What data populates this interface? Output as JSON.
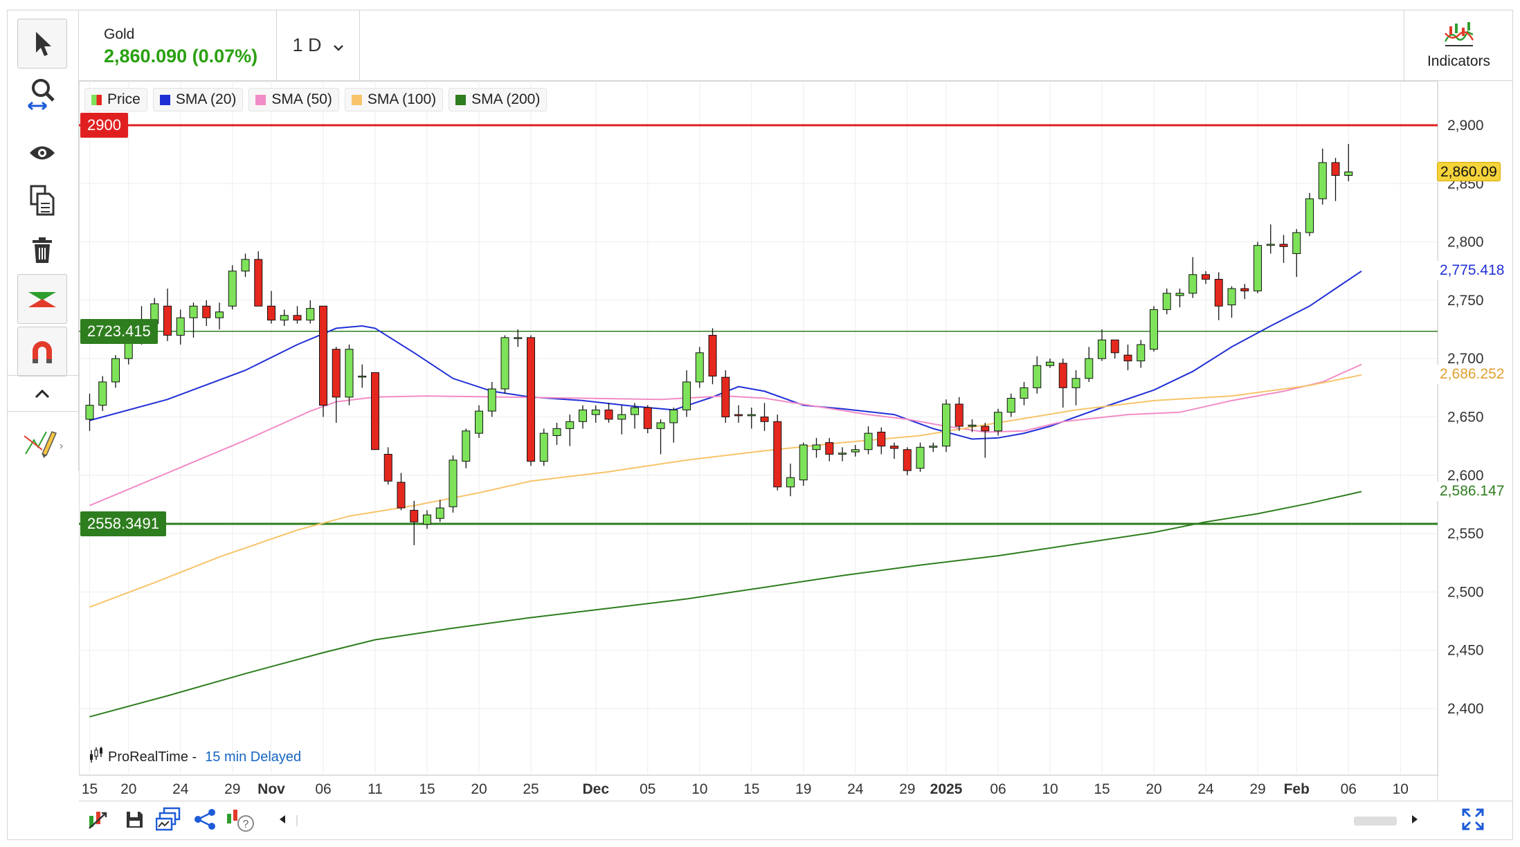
{
  "instrument": {
    "name": "Gold",
    "price": "2,860.090 (0.07%)",
    "price_color": "#2aa012"
  },
  "timeframe": {
    "label": "1 D"
  },
  "indicators_button": {
    "label": "Indicators"
  },
  "toolbar_left": {
    "tools": [
      "pointer-icon",
      "zoom-pan-icon",
      "eye-icon",
      "copy-icon",
      "trash-icon",
      "trend-tool-icon",
      "magnet-icon",
      "collapse-up-icon",
      "drawing-pencil-icon"
    ]
  },
  "toolbar_bottom": {
    "icons": [
      "change-instrument-icon",
      "save-icon",
      "layouts-icon",
      "share-icon",
      "alert-help-icon",
      "scroll-left-icon",
      "scroll-right-icon",
      "fullscreen-icon"
    ]
  },
  "provider": {
    "name": "ProRealTime -",
    "delay": "15 min Delayed"
  },
  "legend": [
    {
      "label": "Price",
      "color": "#2aa012"
    },
    {
      "label": "SMA (20)",
      "color": "#1f2fd6"
    },
    {
      "label": "SMA (50)",
      "color": "#f28cc6"
    },
    {
      "label": "SMA (100)",
      "color": "#f7c46a"
    },
    {
      "label": "SMA (200)",
      "color": "#2e7d1e"
    }
  ],
  "levels": [
    {
      "label": "2900",
      "value": 2900,
      "color": "#e02020"
    },
    {
      "label": "2723.415",
      "value": 2723.415,
      "color": "#2e7d1e"
    },
    {
      "label": "2558.3491",
      "value": 2558.3491,
      "color": "#2e7d1e"
    }
  ],
  "price_tags": [
    {
      "label": "2,860.09",
      "value": 2860.09,
      "bg": "#f5d33a",
      "fg": "#111111",
      "border": "#d6a800"
    },
    {
      "label": "2,775.418",
      "value": 2775.418,
      "bg": "#ffffff",
      "fg": "#1f2fd6",
      "border": ""
    },
    {
      "label": "2,686.252",
      "value": 2686.252,
      "bg": "#ffffff",
      "fg": "#e0a030",
      "border": ""
    },
    {
      "label": "2,586.147",
      "value": 2586.147,
      "bg": "#ffffff",
      "fg": "#2e7d1e",
      "border": ""
    }
  ],
  "chart_data": {
    "type": "candlestick",
    "title": "Gold",
    "y_ticks": [
      2400,
      2450,
      2500,
      2550,
      2600,
      2650,
      2700,
      2750,
      2800,
      2850,
      2900
    ],
    "y_tick_labels": [
      "2,400",
      "2,450",
      "2,500",
      "2,550",
      "2,600",
      "2,650",
      "2,700",
      "2,750",
      "2,800",
      "2,850",
      "2,900"
    ],
    "ylim": [
      2350,
      2920
    ],
    "x_ticks": [
      {
        "label": "15",
        "index": 0,
        "bold": false
      },
      {
        "label": "20",
        "index": 3,
        "bold": false
      },
      {
        "label": "24",
        "index": 7,
        "bold": false
      },
      {
        "label": "29",
        "index": 11,
        "bold": false
      },
      {
        "label": "Nov",
        "index": 14,
        "bold": true
      },
      {
        "label": "06",
        "index": 18,
        "bold": false
      },
      {
        "label": "11",
        "index": 22,
        "bold": false
      },
      {
        "label": "15",
        "index": 26,
        "bold": false
      },
      {
        "label": "20",
        "index": 30,
        "bold": false
      },
      {
        "label": "25",
        "index": 34,
        "bold": false
      },
      {
        "label": "Dec",
        "index": 39,
        "bold": true
      },
      {
        "label": "05",
        "index": 43,
        "bold": false
      },
      {
        "label": "10",
        "index": 47,
        "bold": false
      },
      {
        "label": "15",
        "index": 51,
        "bold": false
      },
      {
        "label": "19",
        "index": 55,
        "bold": false
      },
      {
        "label": "24",
        "index": 59,
        "bold": false
      },
      {
        "label": "29",
        "index": 63,
        "bold": false
      },
      {
        "label": "2025",
        "index": 66,
        "bold": true
      },
      {
        "label": "06",
        "index": 70,
        "bold": false
      },
      {
        "label": "10",
        "index": 74,
        "bold": false
      },
      {
        "label": "15",
        "index": 78,
        "bold": false
      },
      {
        "label": "20",
        "index": 82,
        "bold": false
      },
      {
        "label": "24",
        "index": 86,
        "bold": false
      },
      {
        "label": "29",
        "index": 90,
        "bold": false
      },
      {
        "label": "Feb",
        "index": 93,
        "bold": true
      },
      {
        "label": "06",
        "index": 97,
        "bold": false
      },
      {
        "label": "10",
        "index": 101,
        "bold": false
      }
    ],
    "candles": [
      [
        2648,
        2670,
        2638,
        2660
      ],
      [
        2660,
        2685,
        2655,
        2680
      ],
      [
        2680,
        2703,
        2675,
        2700
      ],
      [
        2700,
        2725,
        2695,
        2722
      ],
      [
        2722,
        2745,
        2712,
        2730
      ],
      [
        2730,
        2752,
        2725,
        2747
      ],
      [
        2745,
        2760,
        2715,
        2720
      ],
      [
        2720,
        2742,
        2712,
        2735
      ],
      [
        2735,
        2748,
        2718,
        2745
      ],
      [
        2745,
        2750,
        2728,
        2735
      ],
      [
        2735,
        2748,
        2725,
        2740
      ],
      [
        2745,
        2780,
        2742,
        2775
      ],
      [
        2775,
        2790,
        2770,
        2785
      ],
      [
        2785,
        2792,
        2745,
        2745
      ],
      [
        2745,
        2758,
        2730,
        2733
      ],
      [
        2733,
        2742,
        2728,
        2737
      ],
      [
        2737,
        2745,
        2730,
        2733
      ],
      [
        2733,
        2750,
        2730,
        2743
      ],
      [
        2745,
        2745,
        2650,
        2660
      ],
      [
        2708,
        2710,
        2645,
        2667
      ],
      [
        2667,
        2712,
        2660,
        2708
      ],
      [
        2685,
        2695,
        2675,
        2685
      ],
      [
        2688,
        2688,
        2622,
        2622
      ],
      [
        2618,
        2624,
        2592,
        2595
      ],
      [
        2594,
        2602,
        2570,
        2572
      ],
      [
        2570,
        2578,
        2540,
        2560
      ],
      [
        2558,
        2570,
        2554,
        2566
      ],
      [
        2563,
        2579,
        2560,
        2572
      ],
      [
        2573,
        2617,
        2568,
        2613
      ],
      [
        2612,
        2640,
        2606,
        2638
      ],
      [
        2636,
        2660,
        2632,
        2655
      ],
      [
        2655,
        2680,
        2650,
        2674
      ],
      [
        2674,
        2720,
        2670,
        2718
      ],
      [
        2718,
        2725,
        2710,
        2718
      ],
      [
        2718,
        2720,
        2608,
        2612
      ],
      [
        2612,
        2640,
        2608,
        2636
      ],
      [
        2634,
        2645,
        2626,
        2640
      ],
      [
        2640,
        2652,
        2625,
        2646
      ],
      [
        2646,
        2660,
        2640,
        2656
      ],
      [
        2652,
        2660,
        2645,
        2656
      ],
      [
        2656,
        2662,
        2645,
        2648
      ],
      [
        2648,
        2660,
        2635,
        2652
      ],
      [
        2652,
        2662,
        2640,
        2658
      ],
      [
        2658,
        2660,
        2636,
        2640
      ],
      [
        2640,
        2648,
        2618,
        2645
      ],
      [
        2645,
        2658,
        2628,
        2656
      ],
      [
        2656,
        2690,
        2650,
        2680
      ],
      [
        2680,
        2710,
        2675,
        2705
      ],
      [
        2720,
        2726,
        2678,
        2685
      ],
      [
        2684,
        2690,
        2645,
        2650
      ],
      [
        2652,
        2660,
        2645,
        2651
      ],
      [
        2651,
        2658,
        2640,
        2652
      ],
      [
        2650,
        2662,
        2638,
        2646
      ],
      [
        2646,
        2652,
        2587,
        2590
      ],
      [
        2590,
        2610,
        2582,
        2598
      ],
      [
        2596,
        2628,
        2591,
        2626
      ],
      [
        2622,
        2632,
        2615,
        2626
      ],
      [
        2628,
        2632,
        2612,
        2618
      ],
      [
        2618,
        2624,
        2612,
        2619
      ],
      [
        2620,
        2626,
        2616,
        2622
      ],
      [
        2622,
        2642,
        2618,
        2636
      ],
      [
        2637,
        2641,
        2618,
        2625
      ],
      [
        2625,
        2628,
        2614,
        2623
      ],
      [
        2622,
        2624,
        2600,
        2604
      ],
      [
        2606,
        2628,
        2603,
        2624
      ],
      [
        2624,
        2628,
        2620,
        2625
      ],
      [
        2625,
        2665,
        2620,
        2661
      ],
      [
        2661,
        2667,
        2638,
        2642
      ],
      [
        2642,
        2648,
        2637,
        2643
      ],
      [
        2642,
        2645,
        2615,
        2638
      ],
      [
        2638,
        2657,
        2634,
        2654
      ],
      [
        2654,
        2670,
        2650,
        2666
      ],
      [
        2666,
        2680,
        2660,
        2675
      ],
      [
        2675,
        2702,
        2670,
        2694
      ],
      [
        2694,
        2700,
        2692,
        2697
      ],
      [
        2696,
        2700,
        2658,
        2675
      ],
      [
        2675,
        2690,
        2660,
        2683
      ],
      [
        2683,
        2710,
        2680,
        2700
      ],
      [
        2700,
        2725,
        2698,
        2716
      ],
      [
        2716,
        2716,
        2700,
        2705
      ],
      [
        2703,
        2712,
        2690,
        2698
      ],
      [
        2698,
        2716,
        2692,
        2712
      ],
      [
        2708,
        2745,
        2706,
        2742
      ],
      [
        2742,
        2760,
        2738,
        2756
      ],
      [
        2754,
        2760,
        2744,
        2756
      ],
      [
        2756,
        2787,
        2752,
        2772
      ],
      [
        2772,
        2775,
        2764,
        2768
      ],
      [
        2768,
        2774,
        2733,
        2745
      ],
      [
        2746,
        2762,
        2735,
        2760
      ],
      [
        2760,
        2764,
        2751,
        2758
      ],
      [
        2758,
        2800,
        2756,
        2797
      ],
      [
        2797,
        2815,
        2790,
        2798
      ],
      [
        2798,
        2806,
        2782,
        2796
      ],
      [
        2790,
        2811,
        2770,
        2808
      ],
      [
        2808,
        2842,
        2805,
        2837
      ],
      [
        2837,
        2880,
        2832,
        2868
      ],
      [
        2868,
        2872,
        2835,
        2857
      ],
      [
        2857,
        2884,
        2852,
        2860
      ]
    ],
    "series": [
      {
        "name": "SMA (20)",
        "color": "#1f2fd6",
        "values": [
          [
            0,
            2647
          ],
          [
            6,
            2665
          ],
          [
            12,
            2690
          ],
          [
            16,
            2712
          ],
          [
            19,
            2726
          ],
          [
            21,
            2728
          ],
          [
            22,
            2726
          ],
          [
            25,
            2705
          ],
          [
            28,
            2683
          ],
          [
            31,
            2672
          ],
          [
            34,
            2667
          ],
          [
            38,
            2664
          ],
          [
            42,
            2659
          ],
          [
            45,
            2656
          ],
          [
            48,
            2667
          ],
          [
            50,
            2676
          ],
          [
            52,
            2672
          ],
          [
            55,
            2660
          ],
          [
            58,
            2657
          ],
          [
            62,
            2652
          ],
          [
            65,
            2640
          ],
          [
            68,
            2631
          ],
          [
            70,
            2632
          ],
          [
            72,
            2636
          ],
          [
            74,
            2642
          ],
          [
            78,
            2658
          ],
          [
            82,
            2673
          ],
          [
            85,
            2689
          ],
          [
            88,
            2710
          ],
          [
            91,
            2728
          ],
          [
            94,
            2745
          ],
          [
            96,
            2760
          ],
          [
            98,
            2775
          ]
        ]
      },
      {
        "name": "SMA (50)",
        "color": "#f28cc6",
        "values": [
          [
            0,
            2574
          ],
          [
            6,
            2602
          ],
          [
            12,
            2630
          ],
          [
            17,
            2655
          ],
          [
            19,
            2663
          ],
          [
            22,
            2667
          ],
          [
            26,
            2668
          ],
          [
            32,
            2667
          ],
          [
            38,
            2666
          ],
          [
            44,
            2665
          ],
          [
            49,
            2668
          ],
          [
            52,
            2666
          ],
          [
            56,
            2659
          ],
          [
            60,
            2652
          ],
          [
            63,
            2648
          ],
          [
            66,
            2642
          ],
          [
            69,
            2637
          ],
          [
            72,
            2638
          ],
          [
            75,
            2646
          ],
          [
            80,
            2652
          ],
          [
            84,
            2654
          ],
          [
            88,
            2664
          ],
          [
            92,
            2672
          ],
          [
            95,
            2680
          ],
          [
            98,
            2695
          ]
        ]
      },
      {
        "name": "SMA (100)",
        "color": "#f7c46a",
        "values": [
          [
            0,
            2487
          ],
          [
            5,
            2508
          ],
          [
            10,
            2530
          ],
          [
            16,
            2553
          ],
          [
            20,
            2565
          ],
          [
            25,
            2574
          ],
          [
            30,
            2585
          ],
          [
            34,
            2595
          ],
          [
            40,
            2603
          ],
          [
            46,
            2613
          ],
          [
            52,
            2621
          ],
          [
            58,
            2628
          ],
          [
            64,
            2634
          ],
          [
            70,
            2645
          ],
          [
            76,
            2656
          ],
          [
            82,
            2664
          ],
          [
            88,
            2668
          ],
          [
            94,
            2677
          ],
          [
            98,
            2686
          ]
        ]
      },
      {
        "name": "SMA (200)",
        "color": "#2e7d1e",
        "values": [
          [
            0,
            2393
          ],
          [
            6,
            2411
          ],
          [
            12,
            2430
          ],
          [
            18,
            2448
          ],
          [
            22,
            2459
          ],
          [
            28,
            2469
          ],
          [
            34,
            2478
          ],
          [
            40,
            2486
          ],
          [
            46,
            2494
          ],
          [
            52,
            2504
          ],
          [
            58,
            2514
          ],
          [
            64,
            2523
          ],
          [
            70,
            2531
          ],
          [
            76,
            2541
          ],
          [
            82,
            2551
          ],
          [
            86,
            2560
          ],
          [
            90,
            2567
          ],
          [
            94,
            2576
          ],
          [
            98,
            2586
          ]
        ]
      }
    ],
    "legend_position": "top-left",
    "grid": true
  }
}
